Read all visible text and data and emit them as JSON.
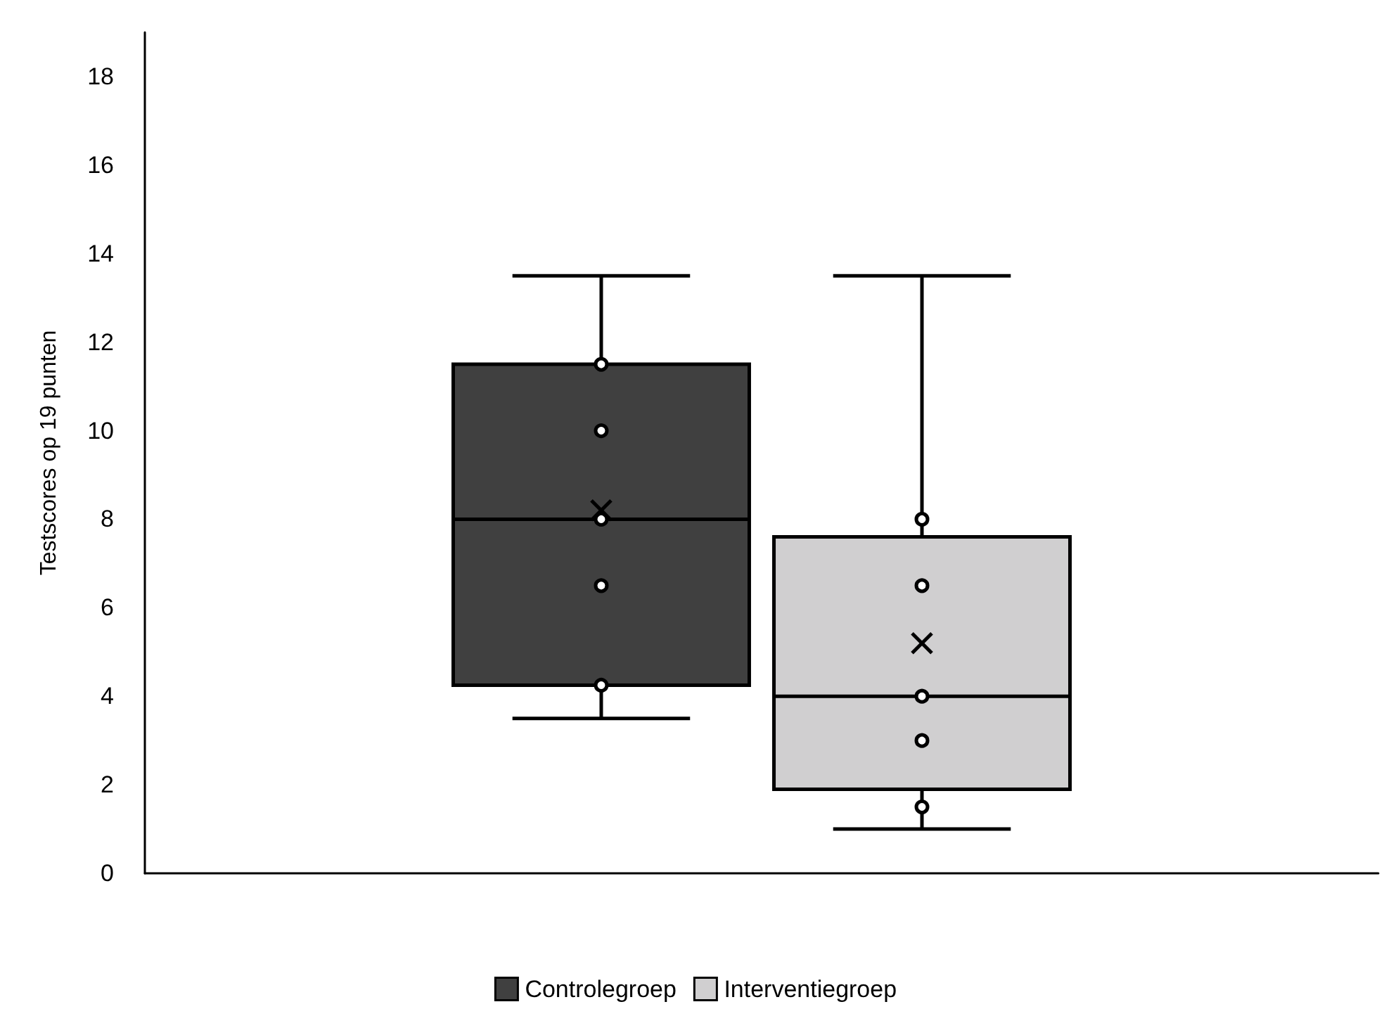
{
  "chart_data": {
    "type": "box",
    "ylabel": "Testscores op 19 punten",
    "categories": [
      null
    ],
    "series": [
      {
        "name": "Controlegroep",
        "color": "#404040",
        "boxes": [
          {
            "low": 3.5,
            "q1": 4.25,
            "median": 8,
            "q3": 11.5,
            "high": 13.5,
            "mean": 8.2
          }
        ]
      },
      {
        "name": "Interventiegroep",
        "color": "#d0cfd0",
        "boxes": [
          {
            "low": 1,
            "q1": 1.9,
            "median": 4,
            "q3": 7.6,
            "high": 13.5,
            "mean": 5.2
          }
        ]
      },
      {
        "type": "scatter",
        "color": "#000000",
        "x": [
          null,
          null,
          null,
          null,
          null
        ],
        "values": [
          11.5,
          10,
          8,
          6.5,
          4.25
        ]
      },
      {
        "type": "scatter",
        "color": "#000000",
        "x": [
          null,
          null,
          null,
          null,
          null
        ],
        "values": [
          8,
          6.5,
          4,
          3,
          1.5
        ]
      }
    ],
    "ylim": [
      0,
      19
    ],
    "yticks": [
      0,
      2,
      4,
      6,
      8,
      10,
      12,
      14,
      16,
      18
    ],
    "grid": false,
    "legend": "bottom",
    "marker": "circle"
  }
}
